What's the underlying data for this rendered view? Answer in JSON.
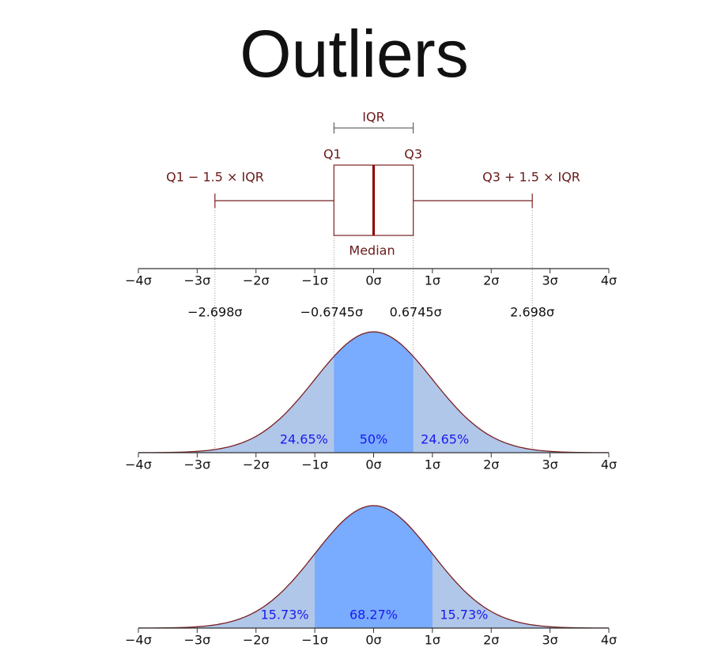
{
  "title": "Outliers",
  "boxplot": {
    "iqr": "IQR",
    "q1": "Q1",
    "q3": "Q3",
    "median": "Median",
    "lower_fence": "Q1 − 1.5 × IQR",
    "upper_fence": "Q3 + 1.5 × IQR"
  },
  "axis_ticks": [
    {
      "value": -4,
      "label": "−4σ"
    },
    {
      "value": -3,
      "label": "−3σ"
    },
    {
      "value": -2,
      "label": "−2σ"
    },
    {
      "value": -1,
      "label": "−1σ"
    },
    {
      "value": 0,
      "label": "0σ"
    },
    {
      "value": 1,
      "label": "1σ"
    },
    {
      "value": 2,
      "label": "2σ"
    },
    {
      "value": 3,
      "label": "3σ"
    },
    {
      "value": 4,
      "label": "4σ"
    }
  ],
  "markers": [
    {
      "value": -2.698,
      "label": "−2.698σ"
    },
    {
      "value": -0.6745,
      "label": "−0.6745σ"
    },
    {
      "value": 0.6745,
      "label": "0.6745σ"
    },
    {
      "value": 2.698,
      "label": "2.698σ"
    }
  ],
  "panels": [
    {
      "labels": [
        "24.65%",
        "50%",
        "24.65%"
      ]
    },
    {
      "labels": [
        "15.73%",
        "68.27%",
        "15.73%"
      ]
    }
  ]
}
